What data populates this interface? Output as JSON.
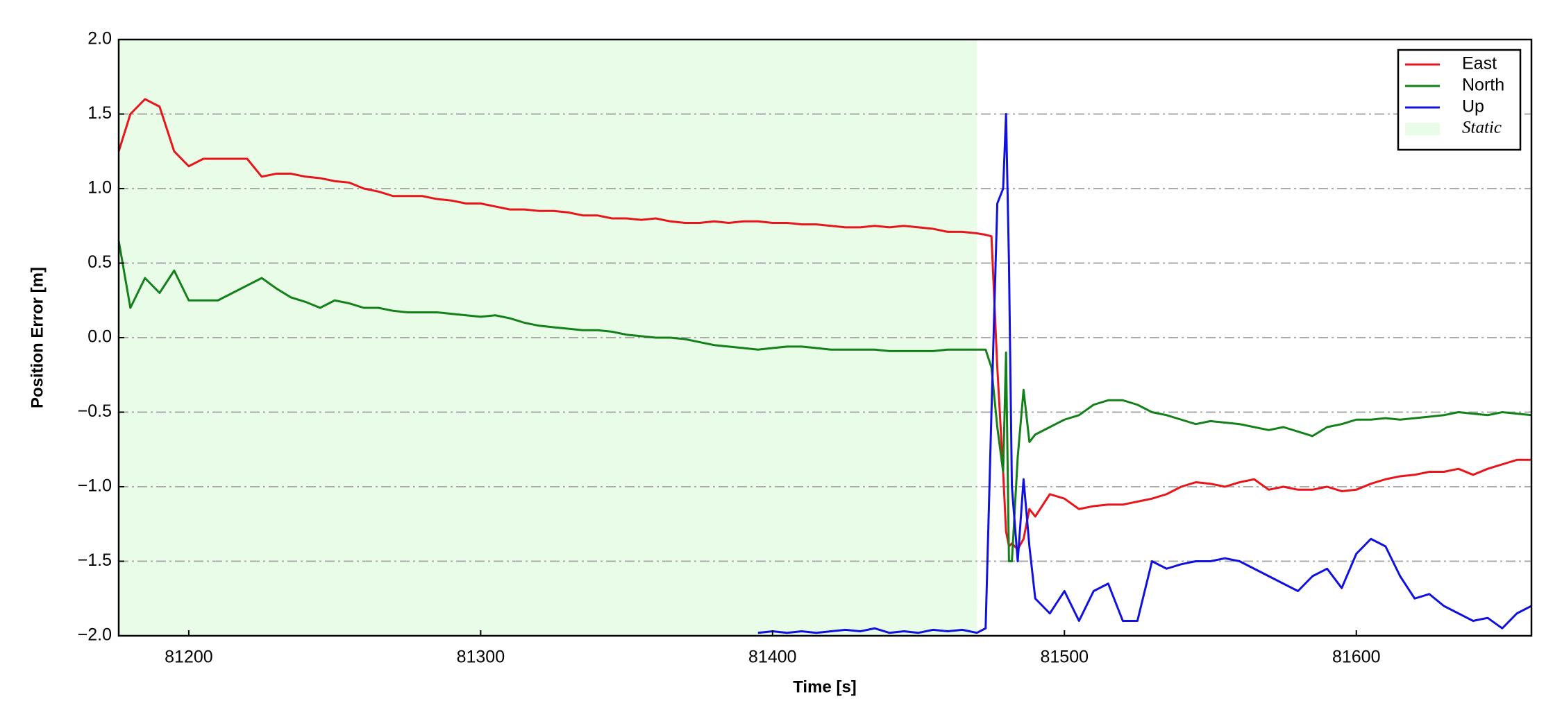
{
  "chart_data": {
    "type": "line",
    "x_label": "Time [s]",
    "y_label": "Position Error [m]",
    "x": [
      81176,
      81180,
      81185,
      81190,
      81195,
      81200,
      81205,
      81210,
      81215,
      81220,
      81225,
      81230,
      81235,
      81240,
      81245,
      81250,
      81255,
      81260,
      81265,
      81270,
      81275,
      81280,
      81285,
      81290,
      81295,
      81300,
      81305,
      81310,
      81315,
      81320,
      81325,
      81330,
      81335,
      81340,
      81345,
      81350,
      81355,
      81360,
      81365,
      81370,
      81375,
      81380,
      81385,
      81390,
      81395,
      81400,
      81405,
      81410,
      81415,
      81420,
      81425,
      81430,
      81435,
      81440,
      81445,
      81450,
      81455,
      81460,
      81465,
      81470,
      81473,
      81475,
      81477,
      81479,
      81480,
      81481,
      81482,
      81484,
      81486,
      81488,
      81490,
      81495,
      81500,
      81505,
      81510,
      81515,
      81520,
      81525,
      81530,
      81535,
      81540,
      81545,
      81550,
      81555,
      81560,
      81565,
      81570,
      81575,
      81580,
      81585,
      81590,
      81595,
      81600,
      81605,
      81610,
      81615,
      81620,
      81625,
      81630,
      81635,
      81640,
      81645,
      81650,
      81655,
      81660
    ],
    "series": [
      {
        "name": "East",
        "color": "#e8151b",
        "values": [
          1.25,
          1.5,
          1.6,
          1.55,
          1.25,
          1.15,
          1.2,
          1.2,
          1.2,
          1.2,
          1.08,
          1.1,
          1.1,
          1.08,
          1.07,
          1.05,
          1.04,
          1.0,
          0.98,
          0.95,
          0.95,
          0.95,
          0.93,
          0.92,
          0.9,
          0.9,
          0.88,
          0.86,
          0.86,
          0.85,
          0.85,
          0.84,
          0.82,
          0.82,
          0.8,
          0.8,
          0.79,
          0.8,
          0.78,
          0.77,
          0.77,
          0.78,
          0.77,
          0.78,
          0.78,
          0.77,
          0.77,
          0.76,
          0.76,
          0.75,
          0.74,
          0.74,
          0.75,
          0.74,
          0.75,
          0.74,
          0.73,
          0.71,
          0.71,
          0.7,
          0.69,
          0.68,
          -0.2,
          -0.9,
          -1.3,
          -1.4,
          -1.38,
          -1.42,
          -1.35,
          -1.15,
          -1.2,
          -1.05,
          -1.08,
          -1.15,
          -1.13,
          -1.12,
          -1.12,
          -1.1,
          -1.08,
          -1.05,
          -1.0,
          -0.97,
          -0.98,
          -1.0,
          -0.97,
          -0.95,
          -1.02,
          -1.0,
          -1.02,
          -1.02,
          -1.0,
          -1.03,
          -1.02,
          -0.98,
          -0.95,
          -0.93,
          -0.92,
          -0.9,
          -0.9,
          -0.88,
          -0.92,
          -0.88,
          -0.85,
          -0.82,
          -0.82
        ]
      },
      {
        "name": "North",
        "color": "#14801a",
        "values": [
          0.65,
          0.2,
          0.4,
          0.3,
          0.45,
          0.25,
          0.25,
          0.25,
          0.3,
          0.35,
          0.4,
          0.33,
          0.27,
          0.24,
          0.2,
          0.25,
          0.23,
          0.2,
          0.2,
          0.18,
          0.17,
          0.17,
          0.17,
          0.16,
          0.15,
          0.14,
          0.15,
          0.13,
          0.1,
          0.08,
          0.07,
          0.06,
          0.05,
          0.05,
          0.04,
          0.02,
          0.01,
          0.0,
          0.0,
          -0.01,
          -0.03,
          -0.05,
          -0.06,
          -0.07,
          -0.08,
          -0.07,
          -0.06,
          -0.06,
          -0.07,
          -0.08,
          -0.08,
          -0.08,
          -0.08,
          -0.09,
          -0.09,
          -0.09,
          -0.09,
          -0.08,
          -0.08,
          -0.08,
          -0.08,
          -0.2,
          -0.6,
          -0.9,
          -0.1,
          -1.5,
          -1.5,
          -0.8,
          -0.35,
          -0.7,
          -0.65,
          -0.6,
          -0.55,
          -0.52,
          -0.45,
          -0.42,
          -0.42,
          -0.45,
          -0.5,
          -0.52,
          -0.55,
          -0.58,
          -0.56,
          -0.57,
          -0.58,
          -0.6,
          -0.62,
          -0.6,
          -0.63,
          -0.66,
          -0.6,
          -0.58,
          -0.55,
          -0.55,
          -0.54,
          -0.55,
          -0.54,
          -0.53,
          -0.52,
          -0.5,
          -0.51,
          -0.52,
          -0.5,
          -0.51,
          -0.52
        ]
      },
      {
        "name": "Up",
        "color": "#1010e0",
        "values": [
          null,
          null,
          null,
          null,
          null,
          null,
          null,
          null,
          null,
          null,
          null,
          null,
          null,
          null,
          null,
          null,
          null,
          null,
          null,
          null,
          null,
          null,
          null,
          null,
          null,
          null,
          null,
          null,
          null,
          null,
          null,
          null,
          null,
          null,
          null,
          null,
          null,
          null,
          null,
          null,
          null,
          null,
          null,
          null,
          -1.98,
          -1.97,
          -1.98,
          -1.97,
          -1.98,
          -1.97,
          -1.96,
          -1.97,
          -1.95,
          -1.98,
          -1.97,
          -1.98,
          -1.96,
          -1.97,
          -1.96,
          -1.98,
          -1.95,
          -0.5,
          0.9,
          1.0,
          1.5,
          0.5,
          -1.0,
          -1.5,
          -0.95,
          -1.4,
          -1.75,
          -1.85,
          -1.7,
          -1.9,
          -1.7,
          -1.65,
          -1.9,
          -1.9,
          -1.5,
          -1.55,
          -1.52,
          -1.5,
          -1.5,
          -1.48,
          -1.5,
          -1.55,
          -1.6,
          -1.65,
          -1.7,
          -1.6,
          -1.55,
          -1.68,
          -1.45,
          -1.35,
          -1.4,
          -1.6,
          -1.75,
          -1.72,
          -1.8,
          -1.85,
          -1.9,
          -1.88,
          -1.95,
          -1.85,
          -1.8
        ]
      }
    ],
    "spans": [
      {
        "name": "Static",
        "x0": 81176,
        "x1": 81470,
        "color": "#e8fce8"
      }
    ],
    "xlim": [
      81176,
      81660
    ],
    "xticks": [
      81200,
      81300,
      81400,
      81500,
      81600
    ],
    "ylim": [
      -2,
      2
    ],
    "yticks": [
      {
        "value": -2,
        "label": "−2.0"
      },
      {
        "value": -1.5,
        "label": "−1.5"
      },
      {
        "value": -1,
        "label": "−1.0"
      },
      {
        "value": -0.5,
        "label": "−0.5"
      },
      {
        "value": 0,
        "label": "0.0"
      },
      {
        "value": 0.5,
        "label": "0.5"
      },
      {
        "value": 1,
        "label": "1.0"
      },
      {
        "value": 1.5,
        "label": "1.5"
      },
      {
        "value": 2,
        "label": "2.0"
      }
    ],
    "grid": true,
    "legend": "upper right"
  }
}
